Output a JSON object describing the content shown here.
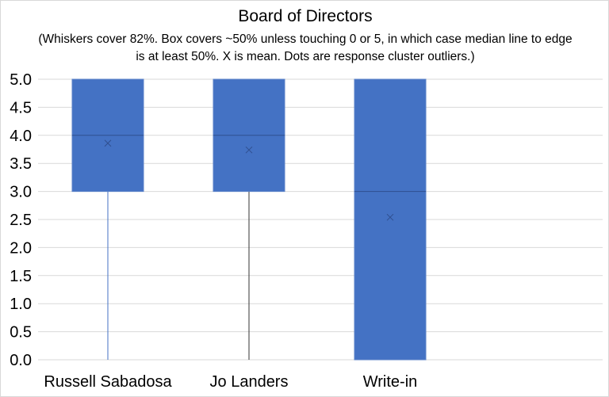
{
  "chart_data": {
    "type": "box",
    "title": "Board of Directors",
    "subtitle": "(Whiskers cover 82%. Box covers ~50% unless touching 0 or 5, in which case median line to edge is at least 50%. X is mean. Dots are response cluster outliers.)",
    "categories": [
      "Russell Sabadosa",
      "Jo Landers",
      "Write-in"
    ],
    "ylim": [
      0,
      5
    ],
    "yticks": [
      "0.0",
      "0.5",
      "1.0",
      "1.5",
      "2.0",
      "2.5",
      "3.0",
      "3.5",
      "4.0",
      "4.5",
      "5.0"
    ],
    "grid": true,
    "boxes": [
      {
        "whisker_low": 0,
        "q1": 3,
        "median": 4,
        "q3": 5,
        "whisker_high": 5,
        "mean": 3.86
      },
      {
        "whisker_low": 0,
        "q1": 3,
        "median": 4,
        "q3": 5,
        "whisker_high": 5,
        "mean": 3.74
      },
      {
        "whisker_low": 0,
        "q1": 0,
        "median": 3,
        "q3": 5,
        "whisker_high": 5,
        "mean": 2.54
      }
    ],
    "colors": {
      "box": "#4472c4",
      "median": "#2f4f8f",
      "whisker": "#4472c4",
      "grid": "#d9d9d9"
    }
  }
}
